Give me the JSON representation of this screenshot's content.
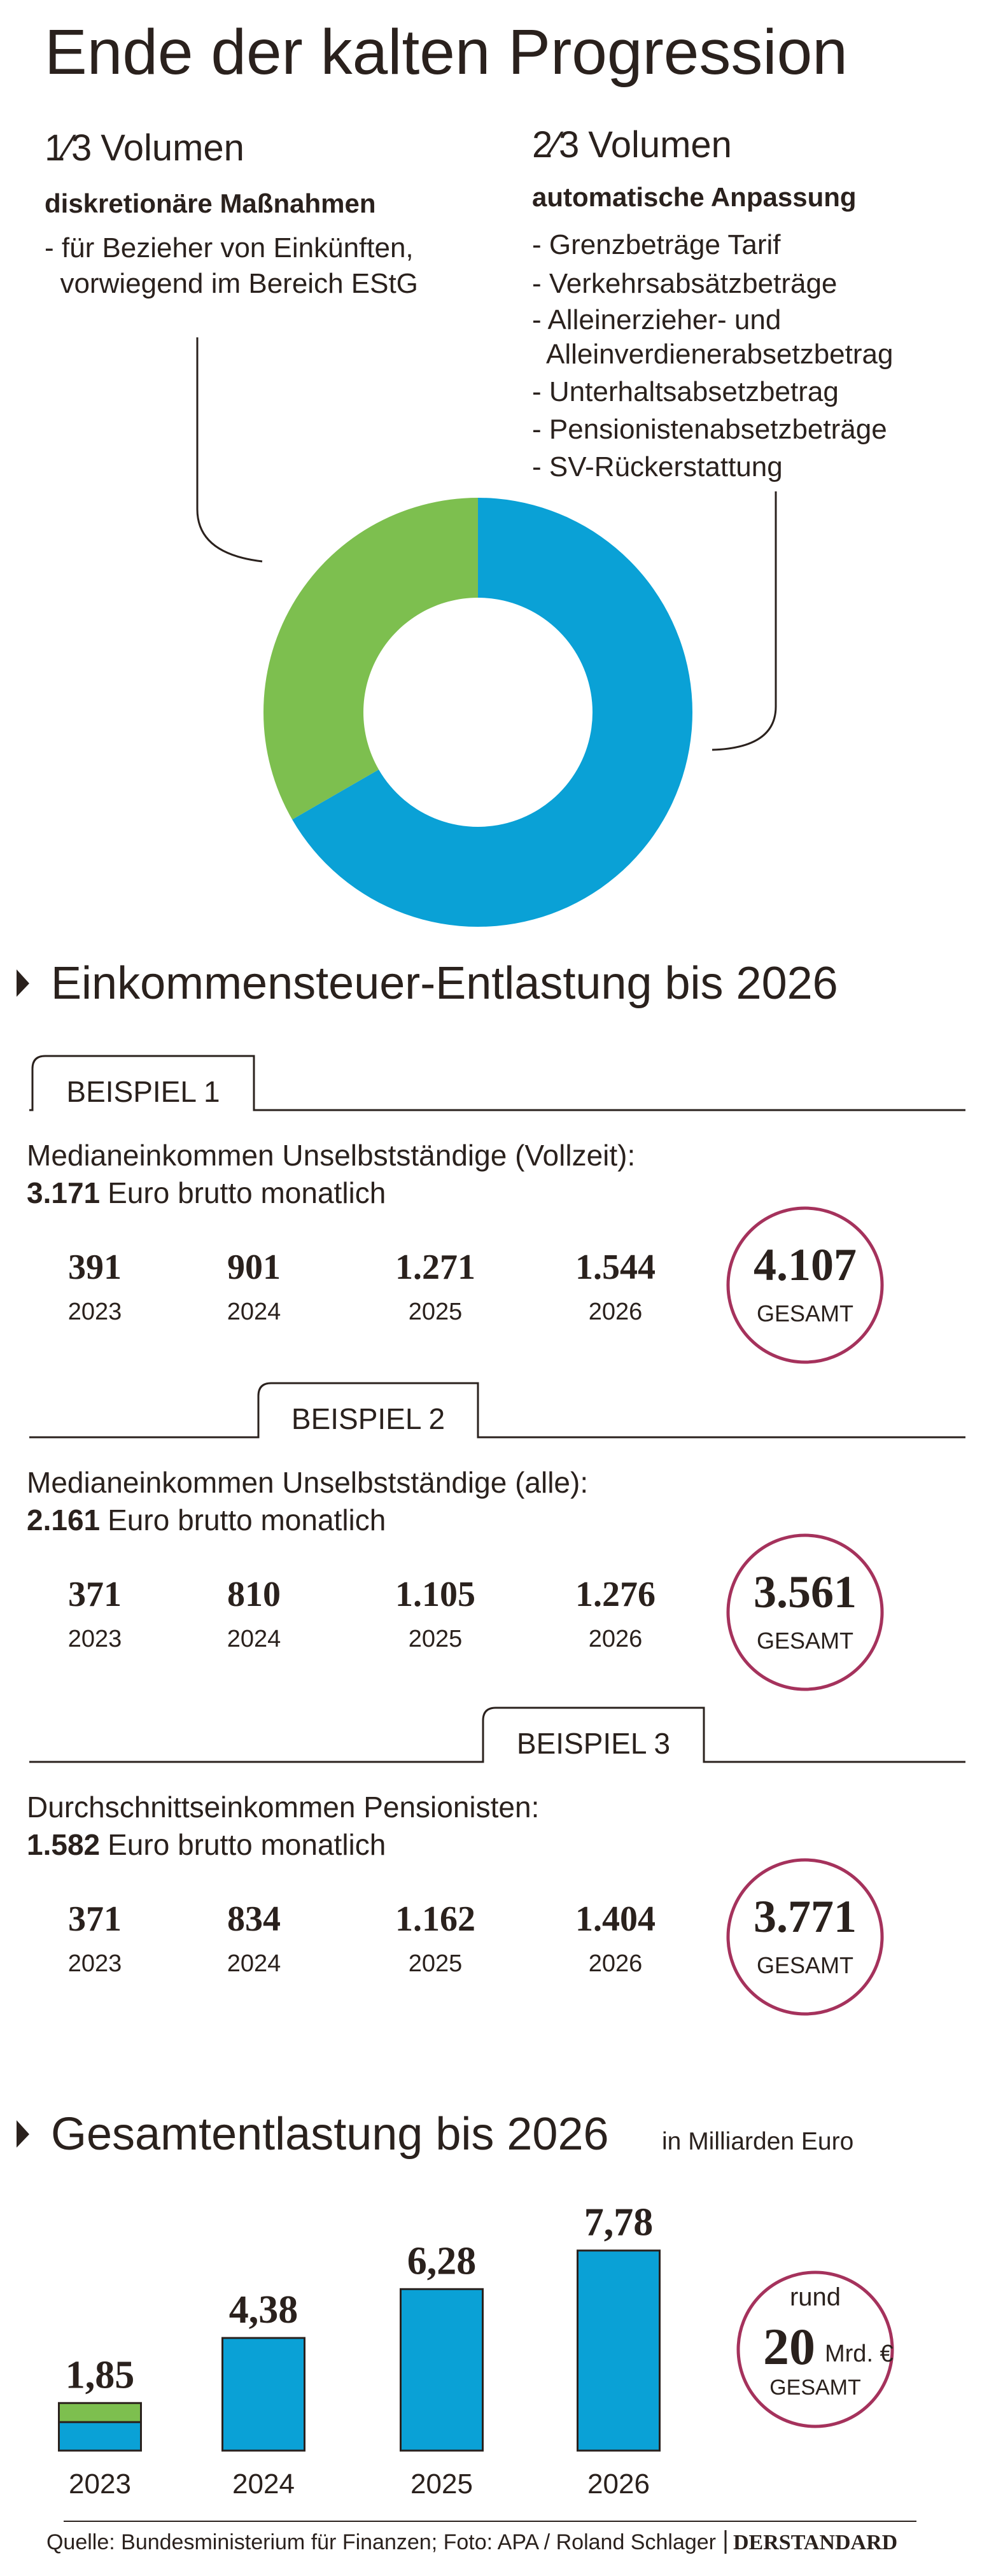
{
  "title": "Ende der kalten Progression",
  "section1_title": "Einkommensteuer-Entlastung bis 2026",
  "examples": [
    {
      "label": "BEISPIEL 1",
      "description": "Medianeinkommen Unselbstständige (Vollzeit):",
      "income": "3.171",
      "income_text": "Euro brutto monatlich",
      "years": [
        "2023",
        "2024",
        "2025",
        "2026"
      ],
      "amounts": [
        "391",
        "901",
        "1.271",
        "1.544"
      ],
      "total": "4.107",
      "total_label": "GESAMT"
    },
    {
      "label": "BEISPIEL 2",
      "description": "Medianeinkommen Unselbstständige (alle):",
      "income": "2.161",
      "income_text": "Euro brutto monatlich",
      "years": [
        "2023",
        "2024",
        "2025",
        "2026"
      ],
      "amounts": [
        "371",
        "810",
        "1.105",
        "1.276"
      ],
      "total": "3.561",
      "total_label": "GESAMT"
    },
    {
      "label": "BEISPIEL 3",
      "description": "Durchschnittseinkommen Pensionisten:",
      "income": "1.582",
      "income_text": "Euro brutto monatlich",
      "years": [
        "2023",
        "2024",
        "2025",
        "2026"
      ],
      "amounts": [
        "371",
        "834",
        "1.162",
        "1.404"
      ],
      "total": "3.771",
      "total_label": "GESAMT"
    }
  ],
  "chart_data": [
    {
      "type": "pie",
      "donut": true,
      "categories": [
        "diskretionäre Maßnahmen",
        "automatische Anpassung"
      ],
      "values": [
        0.3333,
        0.6667
      ],
      "value_labels": [
        "1⁄3",
        "2⁄3"
      ],
      "unit_label": "Volumen",
      "colors": [
        "#7dbf4f",
        "#0aa1d6"
      ],
      "details": [
        [
          "- für Bezieher von Einkünften,",
          "  vorwiegend im Bereich EStG"
        ],
        [
          "- Grenzbeträge Tarif",
          "- Verkehrsabsätzbeträge",
          "- Alleinerzieher- und",
          "  Alleinverdienerabsetzbetrag",
          "- Unterhaltsabsetzbetrag",
          "- Pensionistenabsetzbeträge",
          "- SV-Rückerstattung"
        ]
      ]
    },
    {
      "type": "bar",
      "stacked": true,
      "title": "Gesamtentlastung bis 2026",
      "subtitle": "in Milliarden Euro",
      "categories": [
        "2023",
        "2024",
        "2025",
        "2026"
      ],
      "series": [
        {
          "color": "#0aa1d6",
          "values": [
            1.11,
            4.38,
            6.28,
            7.78
          ]
        },
        {
          "color": "#7dbf4f",
          "values": [
            0.74,
            null,
            null,
            null
          ]
        }
      ],
      "totals": [
        1.85,
        4.38,
        6.28,
        7.78
      ],
      "total_labels": [
        "1,85",
        "4,38",
        "6,28",
        "7,78"
      ],
      "summary": {
        "prefix": "rund",
        "amount": "20",
        "unit": "Mrd. €",
        "label": "GESAMT"
      }
    }
  ],
  "source": "Quelle: Bundesministerium für Finanzen; Foto: APA / Roland Schlager",
  "brand": "DERSTANDARD"
}
